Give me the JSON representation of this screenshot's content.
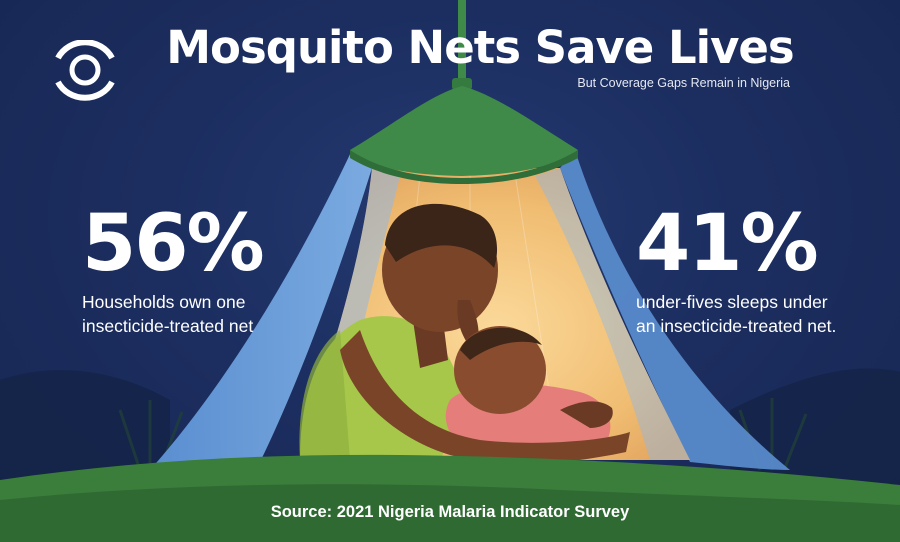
{
  "header": {
    "title": "Mosquito Nets Save Lives",
    "subtitle": "But Coverage Gaps Remain in Nigeria"
  },
  "stats": [
    {
      "value": "56%",
      "caption_line1": "Households own one",
      "caption_line2": "insecticide-treated net"
    },
    {
      "value": "41%",
      "caption_line1": "under-fives sleeps under",
      "caption_line2": "an insecticide-treated net."
    }
  ],
  "footer": {
    "source": "Source: 2021 Nigeria Malaria Indicator Survey"
  },
  "icons": {
    "logo": "circle-target-logo"
  },
  "colors": {
    "background": "#1c2e60",
    "net": "#5b8fd0",
    "canopy": "#3f8a48",
    "glow": "#f3c57c",
    "ground": "#3b7d3a",
    "text": "#ffffff"
  }
}
